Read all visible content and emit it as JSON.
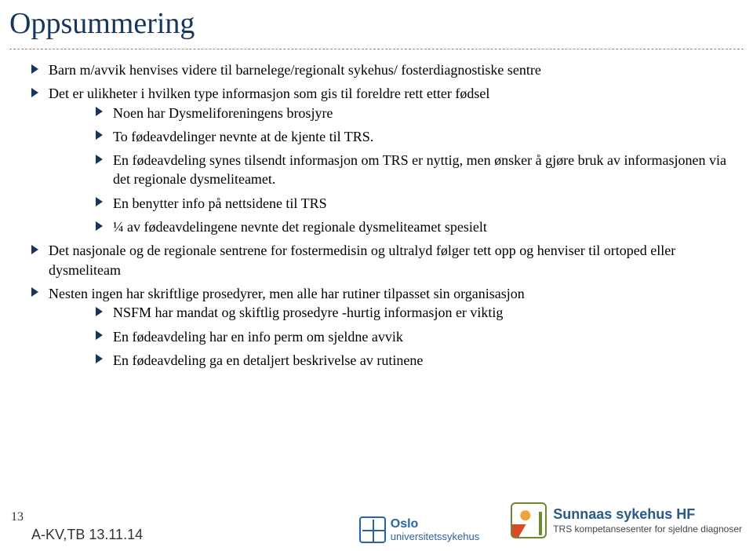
{
  "title": "Oppsummering",
  "colors": {
    "heading": "#16365c",
    "bullet": "#16365c",
    "text": "#000000",
    "background": "#ffffff"
  },
  "typography": {
    "title_fontsize": 38,
    "body_fontsize": 18,
    "body_font_family": "Georgia"
  },
  "bullets": {
    "l1": [
      {
        "text": "Barn m/avvik henvises videre til barnelege/regionalt sykehus/ fosterdiagnostiske  sentre",
        "children": []
      },
      {
        "text": "Det er ulikheter i hvilken type informasjon som gis til foreldre rett etter fødsel",
        "children": [
          {
            "text": "Noen har Dysmeliforeningens brosjyre"
          },
          {
            "text": "To fødeavdelinger nevnte at de kjente til TRS."
          },
          {
            "text": "En fødeavdeling synes tilsendt informasjon om TRS er nyttig, men ønsker å gjøre bruk av informasjonen via det regionale dysmeliteamet."
          },
          {
            "text": "En benytter info på nettsidene til TRS"
          },
          {
            "text": "¼ av fødeavdelingene nevnte det regionale dysmeliteamet spesielt"
          }
        ]
      },
      {
        "text": "Det nasjonale og de regionale sentrene for  fostermedisin og ultralyd følger tett opp og henviser til ortoped eller dysmeliteam",
        "children": []
      },
      {
        "text": "Nesten ingen har skriftlige prosedyrer, men alle har rutiner tilpasset sin organisasjon",
        "children": [
          {
            "text": "NSFM har mandat og skiftlig prosedyre -hurtig informasjon er viktig"
          },
          {
            "text": "En fødeavdeling har en info perm om sjeldne avvik"
          },
          {
            "text": "En fødeavdeling ga en detaljert beskrivelse av rutinene"
          }
        ]
      }
    ]
  },
  "footer": {
    "pagenum": "13",
    "refcode": "A-KV,TB 13.11.14",
    "logoA": {
      "line1": "Oslo",
      "line2": "universitetssykehus"
    },
    "logoB": {
      "line1": "Sunnaas sykehus HF",
      "line2": "TRS kompetansesenter for sjeldne diagnoser"
    }
  }
}
